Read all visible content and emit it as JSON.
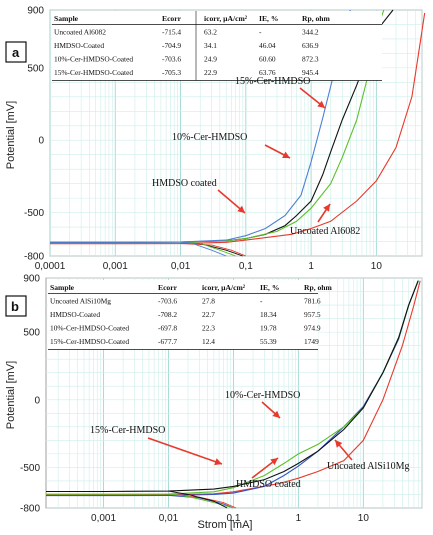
{
  "figure": {
    "xlabel": "Strom [mA]"
  },
  "chart_data": [
    {
      "panel": "a",
      "type": "line",
      "x_scale": "log",
      "xlim": [
        0.0001,
        50
      ],
      "ylim": [
        -800,
        900
      ],
      "ylabel": "Potential [mV]",
      "xticks": [
        "0,0001",
        "0,001",
        "0,01",
        "0,1",
        "1",
        "10"
      ],
      "yticks": [
        "900",
        "500",
        "0",
        "-500",
        "-800"
      ],
      "grid": true,
      "table": {
        "headers": [
          "Sample",
          "Ecorr",
          "icorr, µA/cm²",
          "IE, %",
          "Rp, ohm"
        ],
        "rows": [
          [
            "Uncoated Al6082",
            "-715.4",
            "63.2",
            "-",
            "344.2"
          ],
          [
            "HMDSO-Coated",
            "-704.9",
            "34.1",
            "46.04",
            "636.9"
          ],
          [
            "10%-Cer-HMDSO-Coated",
            "-703.6",
            "24.9",
            "60.60",
            "872.3"
          ],
          [
            "15%-Cer-HMDSO-Coated",
            "-705.3",
            "22.9",
            "63.76",
            "945.4"
          ]
        ]
      },
      "annotations": [
        "15%-Cer-HMDSO",
        "10%-Cer-HMDSO",
        "HMDSO coated",
        "Uncoated Al6082"
      ],
      "series": [
        {
          "name": "Uncoated Al6082",
          "color": "#e8392c",
          "x": [
            0.0001,
            0.001,
            0.01,
            0.05,
            0.1,
            0.5,
            1,
            2,
            5,
            10,
            20,
            35,
            45,
            55
          ],
          "y": [
            -715,
            -715,
            -714,
            -705,
            -690,
            -650,
            -610,
            -560,
            -420,
            -280,
            -50,
            300,
            620,
            880
          ],
          "cathodic": {
            "x": [
              0.03,
              0.06,
              0.1
            ],
            "y": [
              -725,
              -760,
              -800
            ]
          }
        },
        {
          "name": "HMDSO coated",
          "color": "#111111",
          "x": [
            0.0001,
            0.001,
            0.01,
            0.05,
            0.1,
            0.2,
            0.4,
            0.6,
            1,
            1.5,
            2,
            3,
            5,
            8,
            12,
            18
          ],
          "y": [
            -705,
            -705,
            -704,
            -695,
            -680,
            -650,
            -590,
            -520,
            -420,
            -240,
            -80,
            140,
            380,
            620,
            800,
            900
          ],
          "cathodic": {
            "x": [
              0.02,
              0.05,
              0.09
            ],
            "y": [
              -715,
              -760,
              -800
            ]
          }
        },
        {
          "name": "10%-Cer-HMDSO",
          "color": "#5cbf2a",
          "x": [
            0.0001,
            0.001,
            0.01,
            0.05,
            0.1,
            0.3,
            0.6,
            1,
            2,
            3,
            5,
            8,
            10,
            13
          ],
          "y": [
            -704,
            -704,
            -703,
            -695,
            -680,
            -630,
            -560,
            -470,
            -300,
            -120,
            140,
            500,
            750,
            900
          ],
          "cathodic": {
            "x": [
              0.02,
              0.04,
              0.07
            ],
            "y": [
              -712,
              -760,
              -800
            ]
          }
        },
        {
          "name": "15%-Cer-HMDSO",
          "color": "#4e7fd6",
          "x": [
            0.0001,
            0.001,
            0.01,
            0.05,
            0.1,
            0.2,
            0.4,
            0.7,
            1,
            1.5,
            2.2,
            3,
            4
          ],
          "y": [
            -705,
            -705,
            -704,
            -690,
            -660,
            -610,
            -520,
            -380,
            -150,
            150,
            450,
            750,
            900
          ],
          "cathodic": {
            "x": [
              0.015,
              0.03,
              0.05
            ],
            "y": [
              -712,
              -760,
              -800
            ]
          }
        }
      ]
    },
    {
      "panel": "b",
      "type": "line",
      "x_scale": "log",
      "xlim": [
        0.00013,
        80
      ],
      "ylim": [
        -800,
        900
      ],
      "ylabel": "Potential [mV]",
      "xticks": [
        "0,001",
        "0,01",
        "0,1",
        "1",
        "10"
      ],
      "yticks": [
        "900",
        "500",
        "0",
        "-500",
        "-800"
      ],
      "grid": true,
      "table": {
        "headers": [
          "Sample",
          "Ecorr",
          "icorr, µA/cm²",
          "IE, %",
          "Rp, ohm"
        ],
        "rows": [
          [
            "Uncoated AlSi10Mg",
            "-703.6",
            "27.8",
            "-",
            "781.6"
          ],
          [
            "HMDSO-Coated",
            "-708.2",
            "22.7",
            "18.34",
            "957.5"
          ],
          [
            "10%-Cer-HMDSO-Coated",
            "-697.8",
            "22.3",
            "19.78",
            "974.9"
          ],
          [
            "15%-Cer-HMDSO-Coated",
            "-677.7",
            "12.4",
            "55.39",
            "1749"
          ]
        ]
      },
      "annotations": [
        "10%-Cer-HMDSO",
        "15%-Cer-HMDSO",
        "HMDSO coated",
        "Uncoated AlSi10Mg"
      ],
      "series": [
        {
          "name": "Uncoated AlSi10Mg",
          "color": "#e8392c",
          "x": [
            0.00013,
            0.001,
            0.01,
            0.05,
            0.1,
            0.5,
            1,
            2,
            5,
            10,
            20,
            40,
            60,
            75
          ],
          "y": [
            -704,
            -704,
            -703,
            -695,
            -680,
            -620,
            -580,
            -530,
            -450,
            -300,
            0,
            400,
            700,
            880
          ],
          "cathodic": {
            "x": [
              0.03,
              0.07,
              0.11
            ],
            "y": [
              -720,
              -760,
              -800
            ]
          }
        },
        {
          "name": "HMDSO coated",
          "color": "#3550c8",
          "x": [
            0.00013,
            0.001,
            0.01,
            0.05,
            0.1,
            0.3,
            0.6,
            1,
            2,
            5,
            10,
            20,
            35,
            50,
            70
          ],
          "y": [
            -708,
            -708,
            -707,
            -700,
            -690,
            -640,
            -560,
            -490,
            -380,
            -200,
            -50,
            200,
            450,
            700,
            880
          ],
          "cathodic": {
            "x": [
              0.03,
              0.07,
              0.1
            ],
            "y": [
              -725,
              -770,
              -800
            ]
          }
        },
        {
          "name": "10%-Cer-HMDSO",
          "color": "#5cbf2a",
          "x": [
            0.00013,
            0.001,
            0.01,
            0.05,
            0.1,
            0.3,
            0.6,
            1,
            2,
            5,
            10,
            20,
            35,
            50,
            70
          ],
          "y": [
            -698,
            -698,
            -697,
            -680,
            -650,
            -560,
            -470,
            -400,
            -330,
            -200,
            -60,
            200,
            460,
            700,
            880
          ],
          "cathodic": {
            "x": [
              0.02,
              0.05,
              0.1
            ],
            "y": [
              -715,
              -760,
              -800
            ]
          }
        },
        {
          "name": "15%-Cer-HMDSO",
          "color": "#111111",
          "x": [
            0.00013,
            0.001,
            0.01,
            0.05,
            0.1,
            0.3,
            0.6,
            1,
            2,
            5,
            10,
            20,
            35,
            50,
            70
          ],
          "y": [
            -678,
            -678,
            -675,
            -660,
            -640,
            -590,
            -530,
            -470,
            -380,
            -220,
            -60,
            200,
            460,
            700,
            880
          ],
          "cathodic": {
            "x": [
              0.02,
              0.05,
              0.08
            ],
            "y": [
              -700,
              -750,
              -800
            ]
          }
        }
      ]
    }
  ]
}
